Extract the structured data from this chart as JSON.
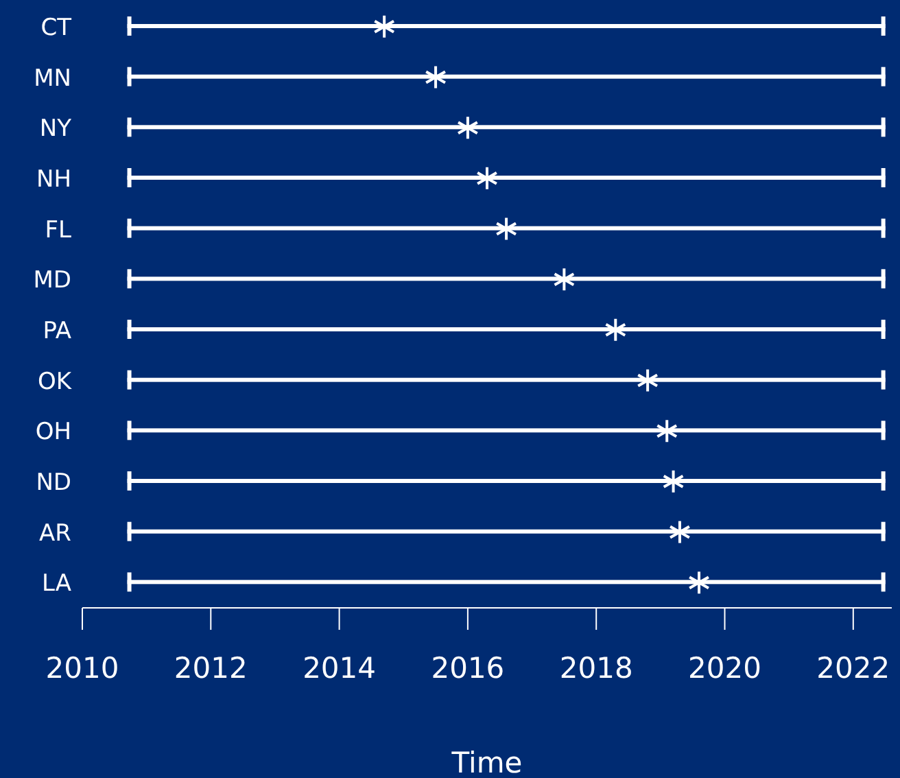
{
  "chart_data": {
    "type": "bar",
    "orientation": "horizontal",
    "xlabel": "Time",
    "categories": [
      "CT",
      "MN",
      "NY",
      "NH",
      "FL",
      "MD",
      "PA",
      "OK",
      "OH",
      "ND",
      "AR",
      "LA"
    ],
    "series": [
      {
        "color": "#ffffff",
        "base": [
          2010.7,
          2010.7,
          2010.7,
          2010.7,
          2010.7,
          2010.7,
          2010.7,
          2010.7,
          2010.7,
          2010.7,
          2010.7,
          2010.7
        ],
        "values": [
          11.8,
          11.8,
          11.8,
          11.8,
          11.8,
          11.8,
          11.8,
          11.8,
          11.8,
          11.8,
          11.8,
          11.8
        ]
      },
      {
        "type": "scatter",
        "color": "#ffffff",
        "values": [
          2014.7,
          2015.5,
          2016.0,
          2016.3,
          2016.6,
          2017.5,
          2018.3,
          2018.8,
          2019.1,
          2019.2,
          2019.3,
          2019.6
        ]
      }
    ],
    "xlim": [
      2010,
      2022.6
    ],
    "xticks": [
      2010,
      2012,
      2014,
      2016,
      2018,
      2020,
      2022
    ],
    "marker": "cross",
    "grid": false
  }
}
